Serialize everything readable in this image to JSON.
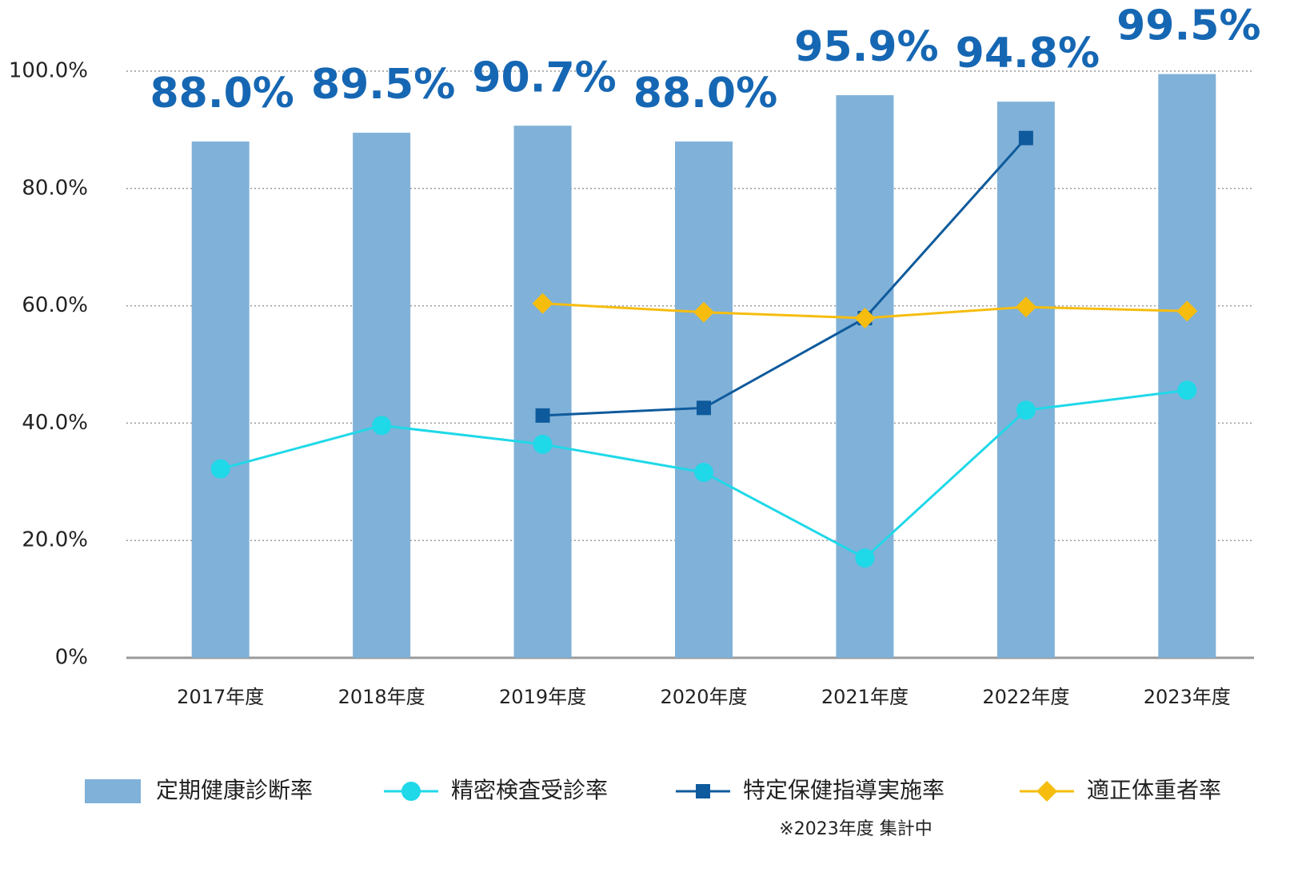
{
  "chart_data": {
    "type": "bar",
    "categories": [
      "2017年度",
      "2018年度",
      "2019年度",
      "2020年度",
      "2021年度",
      "2022年度",
      "2023年度"
    ],
    "series": [
      {
        "name": "定期健康診断率",
        "type": "bar",
        "color": "#80b1d8",
        "values": [
          88.0,
          89.5,
          90.7,
          88.0,
          95.9,
          94.8,
          99.5
        ],
        "value_labels": [
          "88.0%",
          "89.5%",
          "90.7%",
          "88.0%",
          "95.9%",
          "94.8%",
          "99.5%"
        ]
      },
      {
        "name": "精密検査受診率",
        "type": "line",
        "marker": "circle",
        "color": "#1fd8e8",
        "values": [
          32.2,
          39.6,
          36.4,
          31.6,
          17.0,
          42.2,
          45.6
        ]
      },
      {
        "name": "特定保健指導実施率",
        "type": "line",
        "marker": "square",
        "color": "#0e5a9c",
        "values": [
          null,
          null,
          41.3,
          42.6,
          57.9,
          88.6,
          null
        ]
      },
      {
        "name": "適正体重者率",
        "type": "line",
        "marker": "diamond",
        "color": "#f6bd0f",
        "values": [
          null,
          null,
          60.4,
          58.9,
          57.9,
          59.8,
          59.1
        ]
      }
    ],
    "ylim": [
      0,
      100
    ],
    "yticks": [
      {
        "value": 0,
        "label": "0%"
      },
      {
        "value": 20,
        "label": "20.0%"
      },
      {
        "value": 40,
        "label": "40.0%"
      },
      {
        "value": 60,
        "label": "60.0%"
      },
      {
        "value": 80,
        "label": "80.0%"
      },
      {
        "value": 100,
        "label": "100.0%"
      }
    ],
    "grid": true,
    "note": "※2023年度 集計中"
  }
}
